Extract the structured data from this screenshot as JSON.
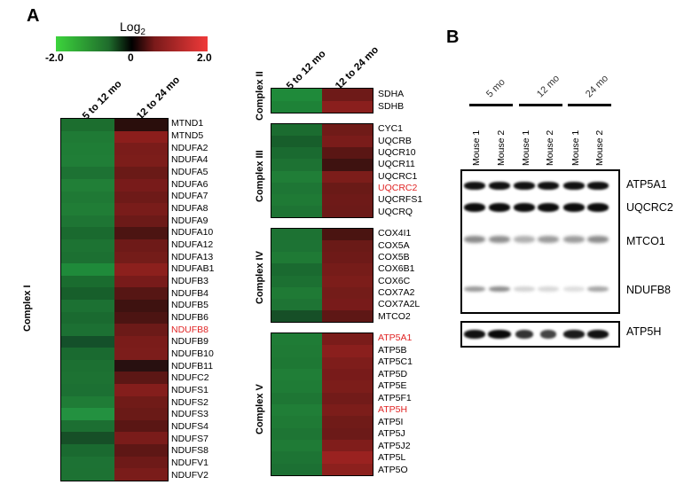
{
  "panel_a": {
    "letter": "A",
    "scale": {
      "title": "Log",
      "title_sub": "2",
      "min_label": "-2.0",
      "mid_label": "0",
      "max_label": "2.0"
    },
    "columns": [
      "5 to 12 mo",
      "12 to 24 mo"
    ],
    "complex_i": {
      "label": "Complex I",
      "genes": [
        "MTND1",
        "MTND5",
        "NDUFA2",
        "NDUFA4",
        "NDUFA5",
        "NDUFA6",
        "NDUFA7",
        "NDUFA8",
        "NDUFA9",
        "NDUFA10",
        "NDUFA12",
        "NDUFA13",
        "NDUFAB1",
        "NDUFB3",
        "NDUFB4",
        "NDUFB5",
        "NDUFB6",
        "NDUFB8",
        "NDUFB9",
        "NDUFB10",
        "NDUFB11",
        "NDUFC2",
        "NDUFS1",
        "NDUFS2",
        "NDUFS3",
        "NDUFS4",
        "NDUFS7",
        "NDUFS8",
        "NDUFV1",
        "NDUFV2"
      ],
      "highlighted": [
        "NDUFB8"
      ],
      "left_colors": [
        "#1c6e2f",
        "#1f7a35",
        "#1f7d36",
        "#207e37",
        "#1d7233",
        "#217f37",
        "#1f7935",
        "#207d36",
        "#1e7534",
        "#1a6a2f",
        "#1d7333",
        "#1c7032",
        "#1f8a3a",
        "#1a6c2f",
        "#175f2b",
        "#1c7133",
        "#1a6a30",
        "#1c7033",
        "#14502a",
        "#1a6a30",
        "#1c7032",
        "#1d7233",
        "#1c7033",
        "#1f7c36",
        "#239140",
        "#1c6f32",
        "#164f27",
        "#1a6a30",
        "#1d7234",
        "#1d7233"
      ],
      "right_colors": [
        "#2a0e0c",
        "#8c1e1c",
        "#7a1c1a",
        "#7c1d1a",
        "#6a1a17",
        "#781b1a",
        "#6e1a18",
        "#791c1a",
        "#6c1a18",
        "#4c1412",
        "#6e1a18",
        "#741c19",
        "#8c201d",
        "#781b1a",
        "#561614",
        "#3e1210",
        "#4c1412",
        "#6c1a18",
        "#7a1c1a",
        "#7c1d1b",
        "#281010",
        "#5c1715",
        "#841e1c",
        "#701b18",
        "#6a1a17",
        "#5a1614",
        "#7a1c1a",
        "#5e1715",
        "#6e1a18",
        "#7a1c1a"
      ]
    },
    "complex_ii": {
      "label": "Complex II",
      "genes": [
        "SDHA",
        "SDHB"
      ],
      "left_colors": [
        "#1f8a3a",
        "#1e8237"
      ],
      "right_colors": [
        "#6e1a18",
        "#8a1f1d"
      ]
    },
    "complex_iii": {
      "label": "Complex III",
      "genes": [
        "CYC1",
        "UQCRB",
        "UQCR10",
        "UQCR11",
        "UQCRC1",
        "UQCRC2",
        "UQCRFS1",
        "UQCRQ"
      ],
      "highlighted": [
        "UQCRC2"
      ],
      "left_colors": [
        "#1b6c30",
        "#175e2b",
        "#1a6a30",
        "#1d7233",
        "#207e37",
        "#1e7635",
        "#1f7a35",
        "#1e7434"
      ],
      "right_colors": [
        "#701b18",
        "#7a1c1a",
        "#5a1614",
        "#3e1210",
        "#7c1d1a",
        "#6a1a17",
        "#6e1a18",
        "#6c1a18"
      ]
    },
    "complex_iv": {
      "label": "Complex IV",
      "genes": [
        "COX4I1",
        "COX5A",
        "COX5B",
        "COX6B1",
        "COX6C",
        "COX7A2",
        "COX7A2L",
        "MTCO2"
      ],
      "left_colors": [
        "#1d7233",
        "#1d7334",
        "#1f7a35",
        "#1a6a30",
        "#1c7032",
        "#1f7a35",
        "#1e7434",
        "#164f27"
      ],
      "right_colors": [
        "#4a1411",
        "#6a1a17",
        "#6e1a18",
        "#761c19",
        "#7c1d1a",
        "#741c19",
        "#781b1a",
        "#5e1715"
      ]
    },
    "complex_v": {
      "label": "Complex V",
      "genes": [
        "ATP5A1",
        "ATP5B",
        "ATP5C1",
        "ATP5D",
        "ATP5E",
        "ATP5F1",
        "ATP5H",
        "ATP5I",
        "ATP5J",
        "ATP5J2",
        "ATP5L",
        "ATP5O"
      ],
      "highlighted": [
        "ATP5A1",
        "ATP5H"
      ],
      "left_colors": [
        "#1f7c36",
        "#1f7a35",
        "#1e7834",
        "#207e37",
        "#1f7c36",
        "#1e7634",
        "#207e37",
        "#1f7a35",
        "#1e7534",
        "#1f7b36",
        "#1d7434",
        "#1c7033"
      ],
      "right_colors": [
        "#7a1c1a",
        "#8a1f1d",
        "#7e1d1b",
        "#781b1a",
        "#7c1d1a",
        "#721b19",
        "#7c1d1a",
        "#701b18",
        "#6c1a18",
        "#801d1b",
        "#9a2220",
        "#8c201d"
      ]
    },
    "highlight_color": "#e02424"
  },
  "panel_b": {
    "letter": "B",
    "groups": [
      "5 mo",
      "12 mo",
      "24 mo"
    ],
    "lanes": [
      "Mouse 1",
      "Mouse 2",
      "Mouse 1",
      "Mouse 2",
      "Mouse 1",
      "Mouse 2"
    ],
    "proteins": [
      "ATP5A1",
      "UQCRC2",
      "MTCO1",
      "NDUFB8"
    ],
    "loading_control": "ATP5H"
  }
}
